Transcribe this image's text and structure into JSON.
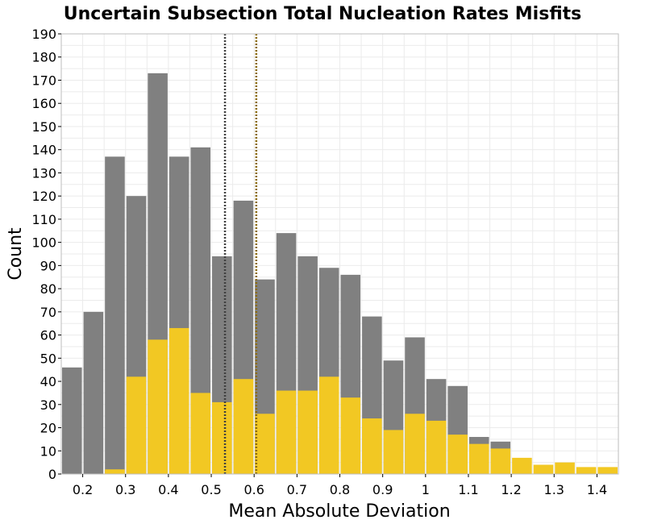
{
  "chart_data": {
    "type": "bar",
    "title": "Uncertain Subsection Total Nucleation Rates Misfits",
    "xlabel": "Mean Absolute Deviation",
    "ylabel": "Count",
    "xlim": [
      0.15,
      1.45
    ],
    "ylim": [
      0,
      190
    ],
    "bin_width": 0.05,
    "x_ticks": [
      "0.2",
      "0.3",
      "0.4",
      "0.5",
      "0.6",
      "0.7",
      "0.8",
      "0.9",
      "1",
      "1.1",
      "1.2",
      "1.3",
      "1.4"
    ],
    "y_ticks": [
      "0",
      "10",
      "20",
      "30",
      "40",
      "50",
      "60",
      "70",
      "80",
      "90",
      "100",
      "110",
      "120",
      "130",
      "140",
      "150",
      "160",
      "170",
      "180",
      "190"
    ],
    "x": [
      0.175,
      0.225,
      0.275,
      0.325,
      0.375,
      0.425,
      0.475,
      0.525,
      0.575,
      0.625,
      0.675,
      0.725,
      0.775,
      0.825,
      0.875,
      0.925,
      0.975,
      1.025,
      1.075,
      1.125,
      1.175,
      1.225,
      1.275,
      1.325,
      1.375,
      1.425
    ],
    "series": [
      {
        "color": "#808080",
        "values": [
          46,
          70,
          137,
          120,
          173,
          137,
          141,
          94,
          118,
          84,
          104,
          94,
          89,
          86,
          68,
          49,
          59,
          41,
          38,
          16,
          14,
          0,
          0,
          0,
          0,
          0
        ]
      },
      {
        "color": "#f2c823",
        "values": [
          0,
          0,
          2,
          42,
          58,
          63,
          35,
          31,
          41,
          26,
          36,
          36,
          42,
          33,
          24,
          19,
          26,
          23,
          17,
          13,
          11,
          7,
          4,
          5,
          3,
          3
        ]
      }
    ],
    "vlines": [
      {
        "x": 0.532,
        "color": "#404040",
        "style": "dotted"
      },
      {
        "x": 0.605,
        "color": "#8a6a10",
        "style": "dotted"
      }
    ],
    "grid": true
  }
}
